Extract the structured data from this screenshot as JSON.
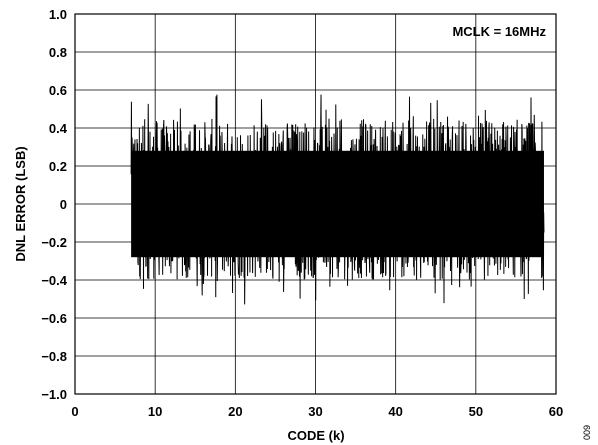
{
  "chart_data": {
    "type": "line",
    "xlabel": "CODE (k)",
    "ylabel": "DNL ERROR (LSB)",
    "xlim": [
      0,
      60
    ],
    "ylim": [
      -1.0,
      1.0
    ],
    "x_ticks": [
      "0",
      "10",
      "20",
      "30",
      "40",
      "50",
      "60"
    ],
    "y_ticks": [
      "1.0",
      "0.8",
      "0.6",
      "0.4",
      "0.2",
      "0",
      "−0.2",
      "−0.4",
      "−0.6",
      "−0.8",
      "−1.0"
    ],
    "grid": true,
    "annotation": "MCLK = 16MHz",
    "series": [
      {
        "color": "#000000",
        "x_range": [
          7,
          58.5
        ],
        "typical_range": [
          -0.4,
          0.45
        ],
        "peak_range": [
          -0.53,
          0.58
        ]
      }
    ]
  },
  "figure_id": "009"
}
